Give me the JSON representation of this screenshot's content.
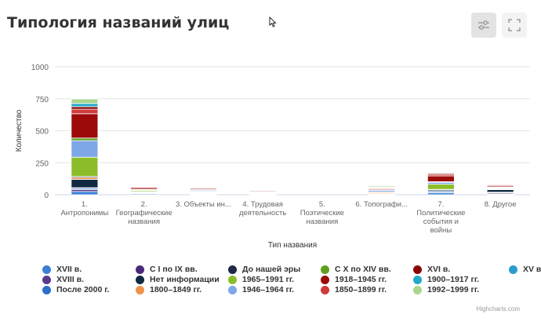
{
  "page": {
    "title": "Типология названий улиц",
    "credits": "Highcharts.com"
  },
  "toolbar": {
    "filter_icon": "sliders-icon",
    "fullscreen_icon": "fullscreen-icon"
  },
  "chart_data": {
    "type": "bar",
    "stacked": true,
    "xlabel": "Тип названия",
    "ylabel": "Количество",
    "ylim": [
      0,
      1000
    ],
    "yticks": [
      0,
      250,
      500,
      750,
      1000
    ],
    "grid": true,
    "legend_position": "bottom",
    "categories": [
      [
        "1.",
        "Антропонимы"
      ],
      [
        "2.",
        "Географические",
        "названия"
      ],
      [
        "3. Объекты ин..."
      ],
      [
        "4. Трудовая",
        "деятельность"
      ],
      [
        "5.",
        "Поэтические",
        "названия"
      ],
      [
        "6. Топографи..."
      ],
      [
        "7.",
        "Политические",
        "события и",
        "войны"
      ],
      [
        "8. Другое"
      ]
    ],
    "series": [
      {
        "name": "XVII в.",
        "color": "#3b7fd6",
        "values": [
          25,
          8,
          4,
          3,
          0,
          3,
          15,
          4
        ]
      },
      {
        "name": "XVIII в.",
        "color": "#5a3a8c",
        "values": [
          15,
          3,
          3,
          0,
          0,
          2,
          4,
          8
        ]
      },
      {
        "name": "После 2000 г.",
        "color": "#2a6fcb",
        "values": [
          10,
          4,
          3,
          2,
          0,
          2,
          8,
          5
        ]
      },
      {
        "name": "С I по IX вв.",
        "color": "#4b2a7a",
        "values": [
          5,
          0,
          2,
          0,
          0,
          0,
          0,
          3
        ]
      },
      {
        "name": "Нет информации",
        "color": "#102840",
        "values": [
          65,
          5,
          5,
          3,
          0,
          2,
          10,
          20
        ]
      },
      {
        "name": "1800–1849 гг.",
        "color": "#f0924a",
        "values": [
          15,
          5,
          5,
          3,
          0,
          8,
          5,
          3
        ]
      },
      {
        "name": "До нашей эры",
        "color": "#1f2a44",
        "values": [
          8,
          0,
          0,
          0,
          0,
          0,
          0,
          4
        ]
      },
      {
        "name": "1965–1991 гг.",
        "color": "#8bbd2a",
        "values": [
          150,
          8,
          5,
          5,
          0,
          5,
          40,
          5
        ]
      },
      {
        "name": "1946–1964 гг.",
        "color": "#7ea7e8",
        "values": [
          130,
          5,
          8,
          3,
          0,
          12,
          15,
          5
        ]
      },
      {
        "name": "С X по XIV вв.",
        "color": "#5e9f1e",
        "values": [
          20,
          5,
          5,
          5,
          0,
          5,
          5,
          5
        ]
      },
      {
        "name": "1918–1945 гг.",
        "color": "#9c0a0a",
        "values": [
          190,
          12,
          8,
          6,
          0,
          8,
          45,
          10
        ]
      },
      {
        "name": "1850–1899 гг.",
        "color": "#d03a3a",
        "values": [
          35,
          6,
          6,
          5,
          0,
          6,
          12,
          6
        ]
      },
      {
        "name": "XVI в.",
        "color": "#8a0707",
        "values": [
          20,
          3,
          3,
          2,
          0,
          3,
          8,
          4
        ]
      },
      {
        "name": "1900–1917 гг.",
        "color": "#26a9c9",
        "values": [
          25,
          3,
          3,
          2,
          0,
          5,
          6,
          3
        ]
      },
      {
        "name": "1992–1999 гг.",
        "color": "#a9d68e",
        "values": [
          35,
          4,
          4,
          2,
          0,
          10,
          5,
          3
        ]
      },
      {
        "name": "XV в.",
        "color": "#2b9ccf",
        "values": [
          5,
          0,
          0,
          0,
          0,
          2,
          0,
          0
        ]
      }
    ]
  }
}
